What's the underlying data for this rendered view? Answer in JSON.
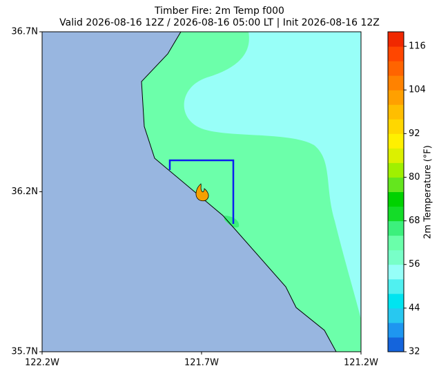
{
  "chart_data": {
    "type": "map",
    "title": "Timber Fire: 2m Temp f000",
    "subtitle": "Valid 2026-08-16 12Z / 2026-08-16 05:00 LT | Init 2026-08-16 12Z",
    "xlim": [
      -122.2,
      -121.2
    ],
    "xticks": [
      {
        "value": -122.2,
        "label": "122.2W"
      },
      {
        "value": -121.7,
        "label": "121.7W"
      },
      {
        "value": -121.2,
        "label": "121.2W"
      }
    ],
    "ylim": [
      35.7,
      36.7
    ],
    "yticks": [
      {
        "value": 35.7,
        "label": "35.7N"
      },
      {
        "value": 36.2,
        "label": "36.2N"
      },
      {
        "value": 36.7,
        "label": "36.7N"
      }
    ],
    "colorbar": {
      "label": "2m Temperature (°F)",
      "lim": [
        32,
        120
      ],
      "ticks": [
        32,
        44,
        56,
        68,
        80,
        92,
        104,
        116
      ],
      "colors": [
        "#1464dc",
        "#1e96f0",
        "#28c8f0",
        "#00e4f0",
        "#50f0f0",
        "#96fff8",
        "#78ffc8",
        "#6affaa",
        "#3cf07c",
        "#14dc28",
        "#00d200",
        "#64e61e",
        "#a0f000",
        "#dcf000",
        "#fff000",
        "#ffd700",
        "#ffbe00",
        "#ffa000",
        "#ff8200",
        "#ff6400",
        "#ff4600",
        "#f02800"
      ]
    }
  }
}
